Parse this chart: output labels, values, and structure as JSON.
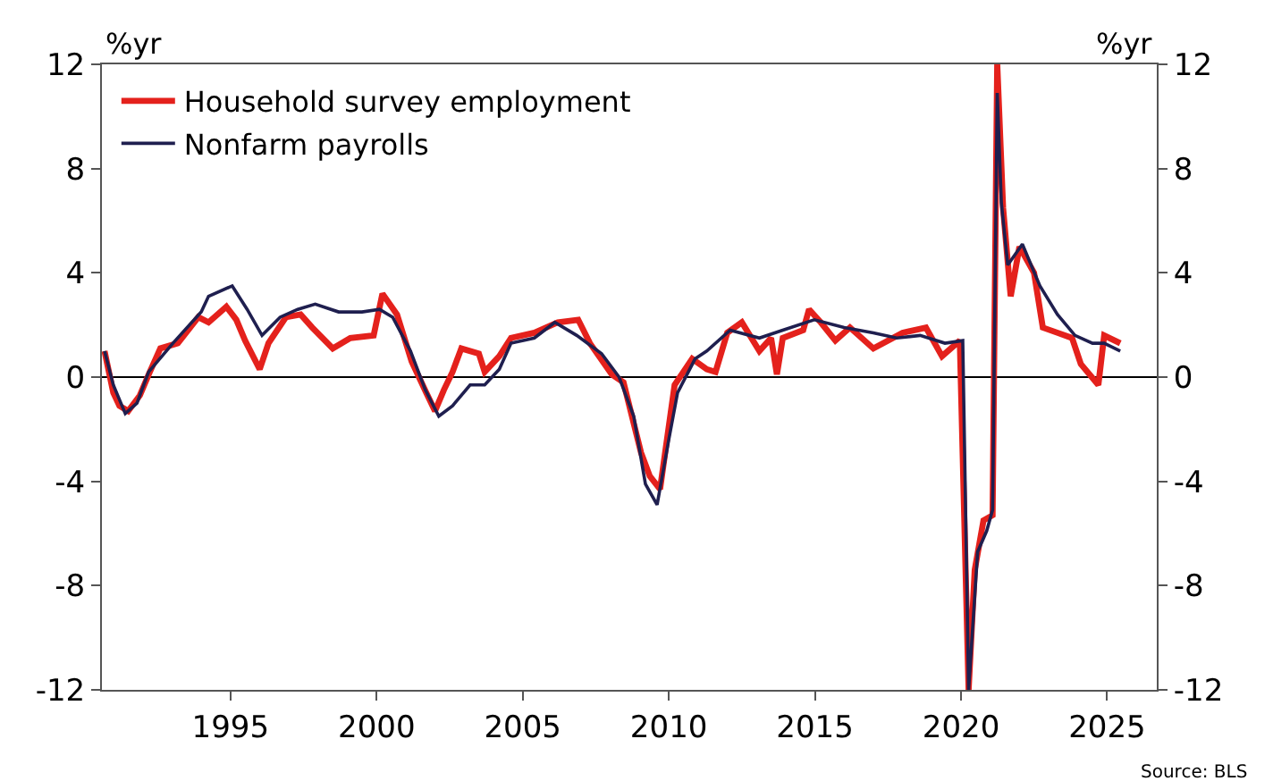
{
  "chart_data": {
    "type": "line",
    "ylabel": "%yr",
    "y2label": "%yr",
    "xlim": [
      1990.6,
      2026.7
    ],
    "xticks": [
      1995,
      2000,
      2005,
      2010,
      2015,
      2020,
      2025
    ],
    "ylim": [
      -12,
      12
    ],
    "yticks": [
      -12,
      -8,
      -4,
      0,
      4,
      8,
      12
    ],
    "y2lim": [
      -12,
      12
    ],
    "y2ticks": [
      -12,
      -8,
      -4,
      0,
      4,
      8,
      12
    ],
    "grid": false,
    "legend": "top left",
    "line_style": "solid",
    "marker": "none",
    "ref_lines": [
      {
        "axis": "y",
        "value": 0,
        "color": "#000000"
      }
    ],
    "annotations": [
      "Source: BLS"
    ],
    "series": [
      {
        "name": "Household survey employment",
        "color": "#e4211c",
        "x": [
          1990.69,
          1990.99,
          1991.2,
          1991.5,
          1991.9,
          1992.2,
          1992.6,
          1993.2,
          1993.9,
          1994.25,
          1994.86,
          1995.2,
          1995.5,
          1996.0,
          1996.3,
          1996.9,
          1997.4,
          1997.8,
          1998.5,
          1999.1,
          1999.9,
          2000.2,
          2000.7,
          2001.2,
          2001.7,
          2002.0,
          2002.3,
          2002.6,
          2002.9,
          2003.5,
          2003.7,
          2004.2,
          2004.6,
          2005.4,
          2006.2,
          2006.9,
          2007.3,
          2008.05,
          2008.45,
          2009.05,
          2009.35,
          2009.7,
          2010.2,
          2010.8,
          2011.3,
          2011.6,
          2012.0,
          2012.5,
          2013.1,
          2013.5,
          2013.7,
          2013.9,
          2014.6,
          2014.8,
          2015.2,
          2015.7,
          2016.2,
          2017.0,
          2018.0,
          2018.8,
          2019.35,
          2019.96,
          2020.26,
          2020.47,
          2020.77,
          2021.08,
          2021.24,
          2021.44,
          2021.7,
          2022.0,
          2022.5,
          2022.8,
          2023.3,
          2023.8,
          2024.1,
          2024.7,
          2024.9,
          2025.45
        ],
        "values": [
          1.0,
          -0.6,
          -1.1,
          -1.3,
          -0.7,
          0.1,
          1.1,
          1.3,
          2.3,
          2.1,
          2.7,
          2.2,
          1.4,
          0.3,
          1.3,
          2.3,
          2.4,
          1.9,
          1.1,
          1.5,
          1.6,
          3.2,
          2.4,
          0.6,
          -0.6,
          -1.3,
          -0.5,
          0.2,
          1.1,
          0.9,
          0.2,
          0.8,
          1.5,
          1.7,
          2.1,
          2.2,
          1.3,
          0.1,
          -0.2,
          -2.9,
          -3.8,
          -4.3,
          -0.3,
          0.7,
          0.3,
          0.2,
          1.7,
          2.1,
          1.0,
          1.5,
          0.1,
          1.5,
          1.8,
          2.6,
          2.1,
          1.4,
          1.9,
          1.1,
          1.7,
          1.9,
          0.8,
          1.4,
          -12,
          -7.4,
          -5.5,
          -5.3,
          12,
          6.5,
          3.1,
          5.0,
          4.0,
          1.9,
          1.7,
          1.5,
          0.5,
          -0.3,
          1.6,
          1.3
        ]
      },
      {
        "name": "Nonfarm payrolls",
        "color": "#1f1f4f",
        "x": [
          1990.69,
          1990.99,
          1991.4,
          1991.8,
          1992.2,
          1993.03,
          1994.0,
          1994.25,
          1995.06,
          1995.57,
          1996.08,
          1996.7,
          1997.3,
          1997.9,
          1998.7,
          1999.5,
          2000.1,
          2000.55,
          2001.16,
          2001.67,
          2002.13,
          2002.6,
          2003.2,
          2003.7,
          2004.2,
          2004.6,
          2005.4,
          2006.1,
          2006.85,
          2007.7,
          2008.3,
          2008.8,
          2009.2,
          2009.6,
          2010.0,
          2010.3,
          2010.9,
          2011.3,
          2012.1,
          2013.1,
          2013.9,
          2014.98,
          2016.0,
          2017.0,
          2017.8,
          2018.6,
          2019.45,
          2020.06,
          2020.26,
          2020.57,
          2020.88,
          2021.08,
          2021.24,
          2021.38,
          2021.6,
          2022.1,
          2022.7,
          2023.3,
          2023.9,
          2024.5,
          2024.9,
          2025.45
        ],
        "values": [
          1.0,
          -0.3,
          -1.4,
          -1.0,
          0.2,
          1.3,
          2.5,
          3.1,
          3.5,
          2.6,
          1.6,
          2.3,
          2.6,
          2.8,
          2.5,
          2.5,
          2.6,
          2.3,
          1.0,
          -0.5,
          -1.5,
          -1.1,
          -0.3,
          -0.3,
          0.3,
          1.3,
          1.5,
          2.1,
          1.6,
          0.9,
          0.0,
          -1.5,
          -4.1,
          -4.9,
          -2.4,
          -0.6,
          0.7,
          1.0,
          1.8,
          1.5,
          1.8,
          2.2,
          1.9,
          1.7,
          1.5,
          1.6,
          1.3,
          1.4,
          -12,
          -6.7,
          -5.9,
          -5.1,
          10.9,
          6.7,
          4.3,
          5.1,
          3.5,
          2.4,
          1.6,
          1.3,
          1.3,
          1.0
        ]
      }
    ]
  }
}
